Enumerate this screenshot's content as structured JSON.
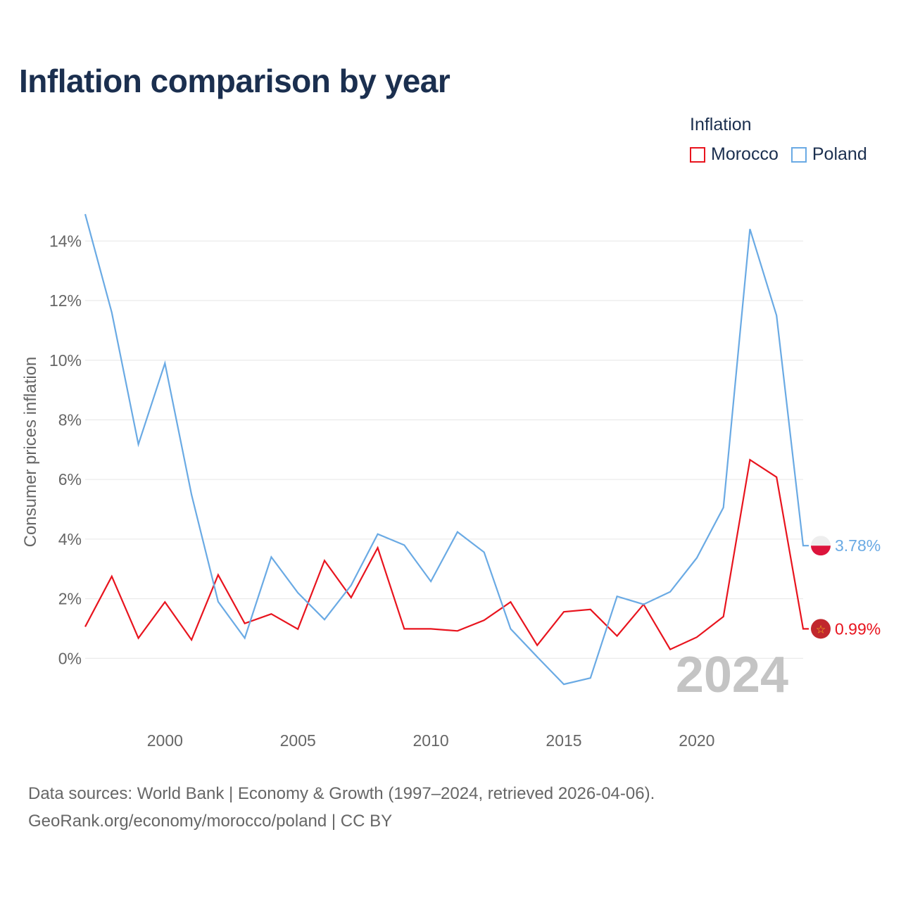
{
  "title": "Inflation comparison by year",
  "legend": {
    "title": "Inflation",
    "items": [
      {
        "label": "Morocco",
        "color": "#e8141e"
      },
      {
        "label": "Poland",
        "color": "#6aaae4"
      }
    ]
  },
  "source": {
    "line1": "Data sources: World Bank | Economy & Growth (1997–2024, retrieved 2026-04-06).",
    "line2": "GeoRank.org/economy/morocco/poland | CC BY"
  },
  "chart_data": {
    "type": "line",
    "title": "Inflation comparison by year",
    "xlabel": "",
    "ylabel": "Consumer prices inflation",
    "x": [
      1997,
      1998,
      1999,
      2000,
      2001,
      2002,
      2003,
      2004,
      2005,
      2006,
      2007,
      2008,
      2009,
      2010,
      2011,
      2012,
      2013,
      2014,
      2015,
      2016,
      2017,
      2018,
      2019,
      2020,
      2021,
      2022,
      2023,
      2024
    ],
    "xlim": [
      1997,
      2024
    ],
    "ylim": [
      -2,
      15
    ],
    "xticks": [
      2000,
      2005,
      2010,
      2015,
      2020
    ],
    "xtick_labels": [
      "2000",
      "2005",
      "2010",
      "2015",
      "2020"
    ],
    "yticks": [
      0,
      2,
      4,
      6,
      8,
      10,
      12,
      14
    ],
    "ytick_labels": [
      "0%",
      "2%",
      "4%",
      "6%",
      "8%",
      "10%",
      "12%",
      "14%"
    ],
    "grid": true,
    "year_watermark": "2024",
    "series": [
      {
        "name": "Morocco",
        "color": "#e8141e",
        "end_label": "0.99%",
        "values": [
          1.06,
          2.75,
          0.68,
          1.89,
          0.62,
          2.8,
          1.17,
          1.49,
          0.98,
          3.28,
          2.04,
          3.71,
          0.99,
          0.99,
          0.92,
          1.28,
          1.89,
          0.44,
          1.56,
          1.64,
          0.75,
          1.81,
          0.3,
          0.71,
          1.4,
          6.66,
          6.08,
          0.99
        ]
      },
      {
        "name": "Poland",
        "color": "#6aaae4",
        "end_label": "3.78%",
        "values": [
          14.9,
          11.6,
          7.18,
          9.9,
          5.49,
          1.9,
          0.68,
          3.4,
          2.2,
          1.3,
          2.45,
          4.17,
          3.8,
          2.58,
          4.24,
          3.56,
          0.99,
          0.05,
          -0.87,
          -0.66,
          2.08,
          1.81,
          2.23,
          3.37,
          5.06,
          14.4,
          11.5,
          3.78
        ]
      }
    ]
  }
}
